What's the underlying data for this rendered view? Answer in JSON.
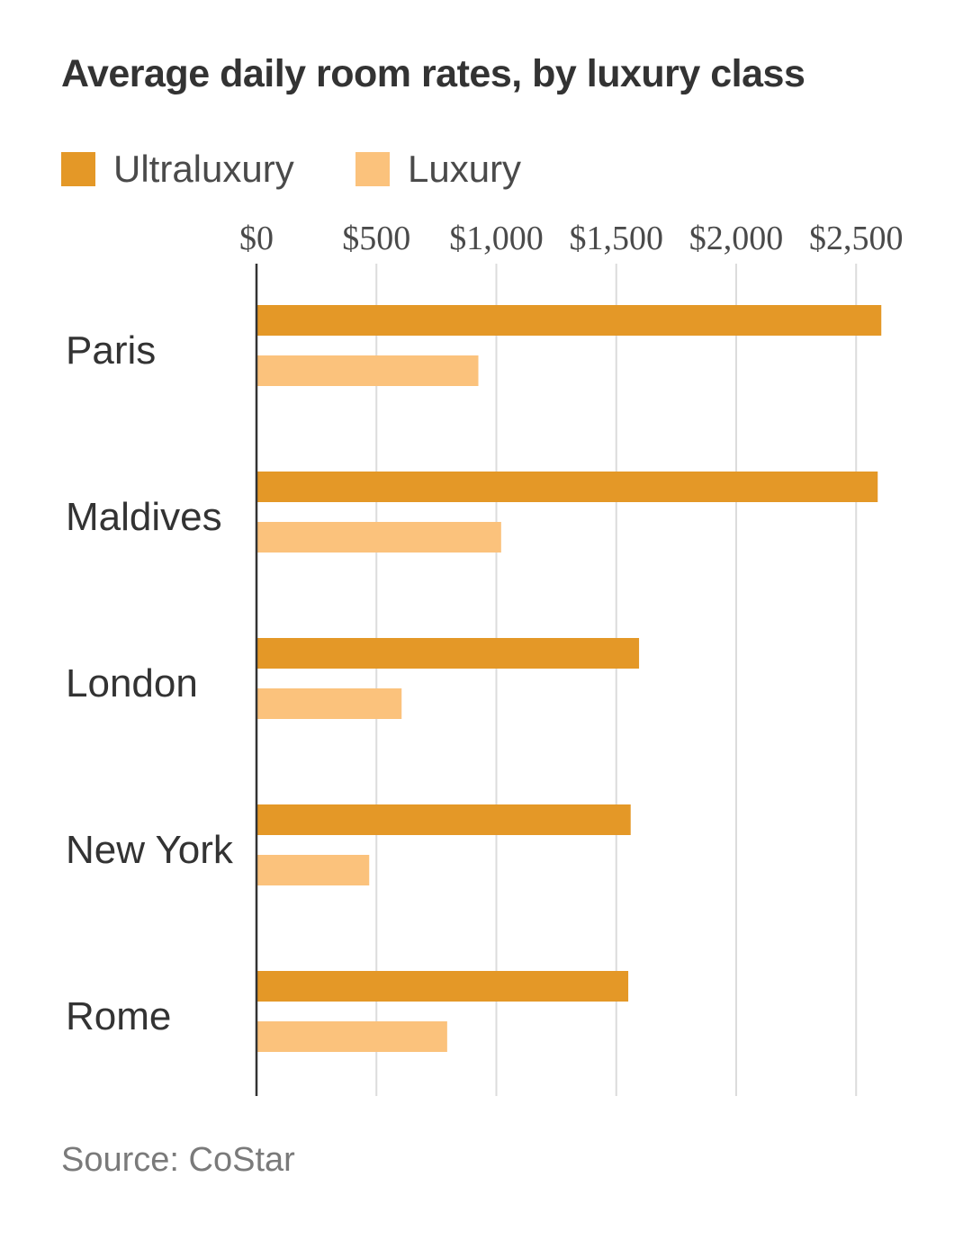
{
  "chart_data": {
    "type": "bar",
    "orientation": "horizontal",
    "title": "Average daily room rates, by luxury class",
    "categories": [
      "Paris",
      "Maldives",
      "London",
      "New York",
      "Rome"
    ],
    "series": [
      {
        "name": "Ultraluxury",
        "color": "#e49827",
        "values": [
          2605,
          2590,
          1595,
          1560,
          1550
        ]
      },
      {
        "name": "Luxury",
        "color": "#fbc27c",
        "values": [
          925,
          1020,
          605,
          470,
          795
        ]
      }
    ],
    "xticks": [
      0,
      500,
      1000,
      1500,
      2000,
      2500
    ],
    "xtick_labels": [
      "$0",
      "$500",
      "$1,000",
      "$1,500",
      "$2,000",
      "$2,500"
    ],
    "xlim": [
      0,
      2700
    ],
    "grid": true,
    "legend_position": "top-left",
    "source": "Source: CoStar"
  }
}
